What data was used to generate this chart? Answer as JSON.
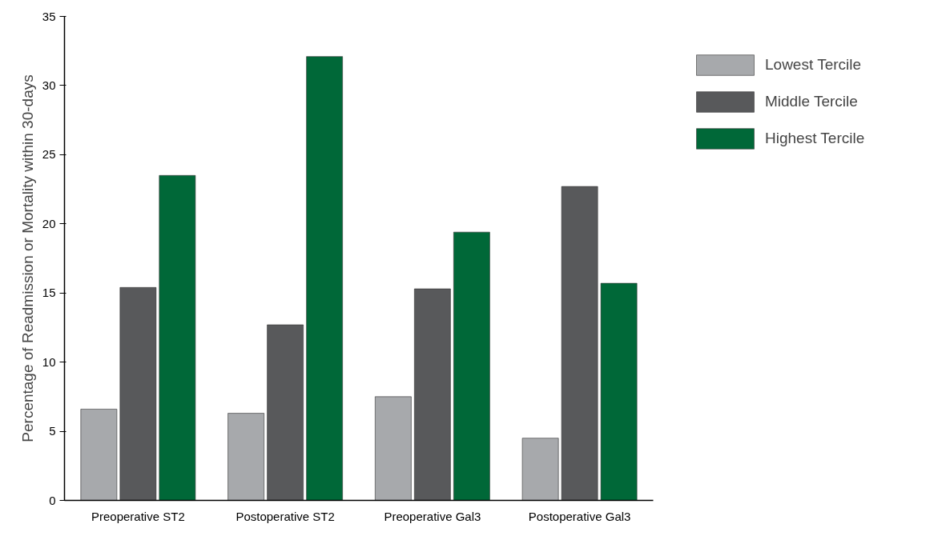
{
  "chart_data": {
    "type": "bar",
    "ylabel": "Percentage of Readmission or Mortality within 30-days",
    "categories": [
      "Preoperative ST2",
      "Postoperative ST2",
      "Preoperative Gal3",
      "Postoperative Gal3"
    ],
    "series": [
      {
        "name": "Lowest Tercile",
        "color": "#a7a9ac",
        "values": [
          6.6,
          6.3,
          7.5,
          4.5
        ]
      },
      {
        "name": "Middle Tercile",
        "color": "#58595b",
        "values": [
          15.4,
          12.7,
          15.3,
          22.7
        ]
      },
      {
        "name": "Highest Tercile",
        "color": "#006838",
        "values": [
          23.5,
          32.1,
          19.4,
          15.7
        ]
      }
    ],
    "ylim": [
      0,
      35
    ],
    "yticks": [
      0,
      5,
      10,
      15,
      20,
      25,
      30,
      35
    ],
    "grid": false,
    "legend": "top right"
  }
}
